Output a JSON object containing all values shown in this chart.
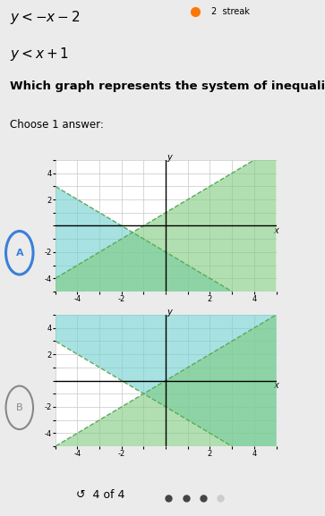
{
  "title_line1": "y < -x − 2",
  "title_line2": "y < x + 1",
  "question": "Which graph represents the system of inequalities?",
  "choose": "Choose 1 answer:",
  "answer_label": "4 of 4",
  "bg_color": "#ebebeb",
  "graph_bg": "#ffffff",
  "grid_color": "#c8c8c8",
  "blue_fill": "#6ecece",
  "green_fill": "#7ecb7e",
  "blue_alpha": 0.6,
  "green_alpha": 0.6,
  "line_color_dashed": "#5aaa5a",
  "xlim": [
    -5,
    5
  ],
  "ylim": [
    -5,
    5
  ]
}
